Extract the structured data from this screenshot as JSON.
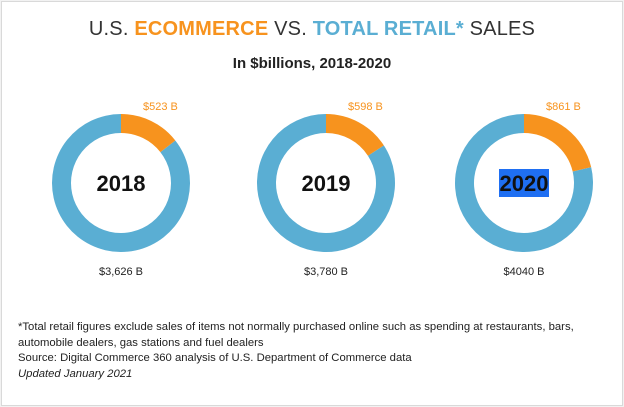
{
  "header": {
    "title_prefix": "U.S. ",
    "title_ecommerce": "ECOMMERCE",
    "title_middle": " VS. ",
    "title_retail": "TOTAL RETAIL*",
    "title_suffix": " SALES",
    "subtitle": "In $billions, 2018-2020"
  },
  "chart_data": {
    "type": "pie",
    "variant": "donut",
    "unit": "$ billions",
    "series": [
      {
        "name": "Ecommerce",
        "values": [
          523,
          598,
          861
        ]
      },
      {
        "name": "Total Retail",
        "values": [
          3626,
          3780,
          4040
        ]
      }
    ],
    "categories": [
      "2018",
      "2019",
      "2020"
    ],
    "donuts": [
      {
        "year": "2018",
        "ecommerce": 523,
        "total": 3626,
        "ecommerce_label": "$523 B",
        "total_label": "$3,626 B",
        "highlighted": false
      },
      {
        "year": "2019",
        "ecommerce": 598,
        "total": 3780,
        "ecommerce_label": "$598 B",
        "total_label": "$3,780 B",
        "highlighted": false
      },
      {
        "year": "2020",
        "ecommerce": 861,
        "total": 4040,
        "ecommerce_label": "$861 B",
        "total_label": "$4040 B",
        "highlighted": true
      }
    ],
    "colors": {
      "ecommerce": "#f7931e",
      "total_retail": "#5aaed3",
      "highlight": "#1f6ff2"
    }
  },
  "notes": {
    "footnote": "*Total retail figures exclude sales of items not normally purchased online such as spending at restaurants, bars, automobile dealers, gas stations and fuel dealers",
    "source": "Source: Digital Commerce 360 analysis of U.S. Department of Commerce data",
    "updated": "Updated January 2021"
  }
}
